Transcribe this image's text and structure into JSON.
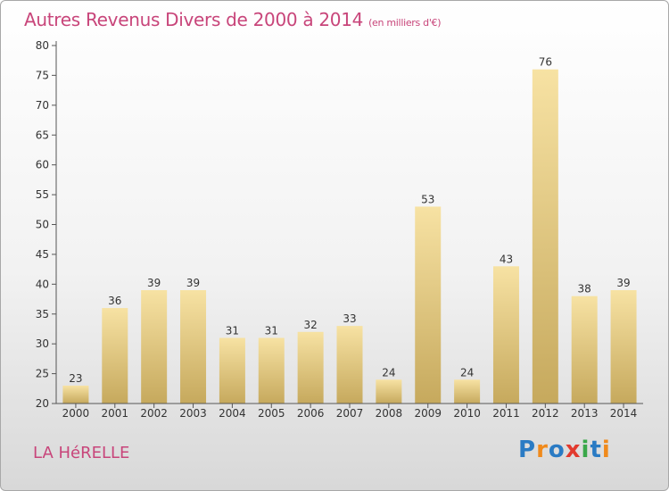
{
  "title": "Autres Revenus Divers de 2000 à 2014",
  "subtitle": "(en milliers d'€)",
  "commune": "LA HéRELLE",
  "logo": {
    "text": "Proxiti",
    "letters": [
      "P",
      "r",
      "o",
      "x",
      "i",
      "t",
      "i"
    ],
    "colors": [
      "#2a7bc4",
      "#f08a1c",
      "#2a7bc4",
      "#e23a2e",
      "#3aa84a",
      "#2a7bc4",
      "#f08a1c"
    ]
  },
  "colors": {
    "title": "#c8457a",
    "bar_top": "#f5dc98",
    "bar_bottom": "#c9ad62"
  },
  "chart_data": {
    "type": "bar",
    "title": "Autres Revenus Divers de 2000 à 2014",
    "subtitle": "(en milliers d'€)",
    "categories": [
      "2000",
      "2001",
      "2002",
      "2003",
      "2004",
      "2005",
      "2006",
      "2007",
      "2008",
      "2009",
      "2010",
      "2011",
      "2012",
      "2013",
      "2014"
    ],
    "values": [
      23,
      36,
      39,
      39,
      31,
      31,
      32,
      33,
      24,
      53,
      24,
      43,
      76,
      38,
      39
    ],
    "ylim": [
      20,
      80
    ],
    "yticks": [
      20,
      25,
      30,
      35,
      40,
      45,
      50,
      55,
      60,
      65,
      70,
      75,
      80
    ],
    "grid": false,
    "legend": "none"
  }
}
